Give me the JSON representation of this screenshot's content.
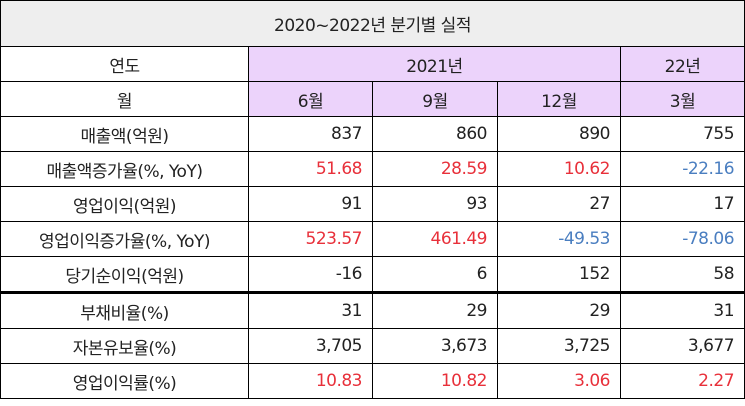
{
  "title": "2020~2022년 분기별 실적",
  "header": {
    "year_label": "연도",
    "year_2021": "2021년",
    "year_22": "22년",
    "month_label": "월",
    "months": [
      "6월",
      "9월",
      "12월",
      "3월"
    ]
  },
  "rows": [
    {
      "label": "매출액(억원)",
      "values": [
        "837",
        "860",
        "890",
        "755"
      ],
      "colors": [
        "",
        "",
        "",
        ""
      ]
    },
    {
      "label": "매출액증가율(%, YoY)",
      "values": [
        "51.68",
        "28.59",
        "10.62",
        "-22.16"
      ],
      "colors": [
        "red",
        "red",
        "red",
        "blue"
      ]
    },
    {
      "label": "영업이익(억원)",
      "values": [
        "91",
        "93",
        "27",
        "17"
      ],
      "colors": [
        "",
        "",
        "",
        ""
      ]
    },
    {
      "label": "영업이익증가율(%, YoY)",
      "values": [
        "523.57",
        "461.49",
        "-49.53",
        "-78.06"
      ],
      "colors": [
        "red",
        "red",
        "blue",
        "blue"
      ]
    },
    {
      "label": "당기순이익(억원)",
      "values": [
        "-16",
        "6",
        "152",
        "58"
      ],
      "colors": [
        "",
        "",
        "",
        ""
      ]
    },
    {
      "label": "부채비율(%)",
      "values": [
        "31",
        "29",
        "29",
        "31"
      ],
      "colors": [
        "",
        "",
        "",
        ""
      ]
    },
    {
      "label": "자본유보율(%)",
      "values": [
        "3,705",
        "3,673",
        "3,725",
        "3,677"
      ],
      "colors": [
        "",
        "",
        "",
        ""
      ]
    },
    {
      "label": "영업이익률(%)",
      "values": [
        "10.83",
        "10.82",
        "3.06",
        "2.27"
      ],
      "colors": [
        "red",
        "red",
        "red",
        "red"
      ]
    }
  ],
  "colors": {
    "positive": "#e8303a",
    "negative": "#4a7ec0",
    "header_bg": "#ecd3fb",
    "title_bg": "#eeeeee"
  }
}
